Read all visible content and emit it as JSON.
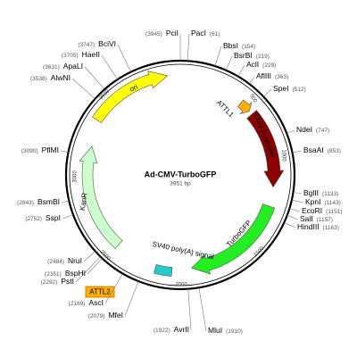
{
  "title": "Ad-CMV-TurboGFP",
  "length": "3951 bp",
  "features": [
    {
      "name": "ori"
    },
    {
      "name": "ATTL1"
    },
    {
      "name": "CMV Promoter"
    },
    {
      "name": "TurboGFP"
    },
    {
      "name": "SV40 poly(A) signal"
    },
    {
      "name": "ATTL2"
    },
    {
      "name": "KanR"
    }
  ],
  "scale_ticks": [
    500,
    1000,
    1500,
    2000,
    2500,
    3000,
    3500
  ],
  "sites": [
    {
      "name": "PacI",
      "position": "(61)"
    },
    {
      "name": "BbsI",
      "position": "(154)"
    },
    {
      "name": "BsrBI",
      "position": "(219)"
    },
    {
      "name": "AclI",
      "position": "(229)"
    },
    {
      "name": "AflIII",
      "position": "(363)"
    },
    {
      "name": "SpeI",
      "position": "(512)"
    },
    {
      "name": "NdeI",
      "position": "(747)"
    },
    {
      "name": "BsaAI",
      "position": "(853)"
    },
    {
      "name": "BglII",
      "position": "(1133)"
    },
    {
      "name": "KpnI",
      "position": "(1143)"
    },
    {
      "name": "EcoRI",
      "position": "(1151)"
    },
    {
      "name": "SalI",
      "position": "(1157)"
    },
    {
      "name": "HindIII",
      "position": "(1163)"
    },
    {
      "name": "MluI",
      "position": "(1910)"
    },
    {
      "name": "AvrII",
      "position": "(1922)"
    },
    {
      "name": "MfeI",
      "position": "(2079)"
    },
    {
      "name": "AscI",
      "position": "(2169)"
    },
    {
      "name": "PstI",
      "position": "(2292)"
    },
    {
      "name": "BspHI",
      "position": "(2351)"
    },
    {
      "name": "NruI",
      "position": "(2484)"
    },
    {
      "name": "SspI",
      "position": "(2752)"
    },
    {
      "name": "BsmBI",
      "position": "(2843)"
    },
    {
      "name": "PflMI",
      "position": "(3090)"
    },
    {
      "name": "AlwNI",
      "position": "(3536)"
    },
    {
      "name": "ApaLI",
      "position": "(3631)"
    },
    {
      "name": "HaeII",
      "position": "(3705)"
    },
    {
      "name": "BciVI",
      "position": "(3747)"
    },
    {
      "name": "PciI",
      "position": "(3945)"
    }
  ]
}
